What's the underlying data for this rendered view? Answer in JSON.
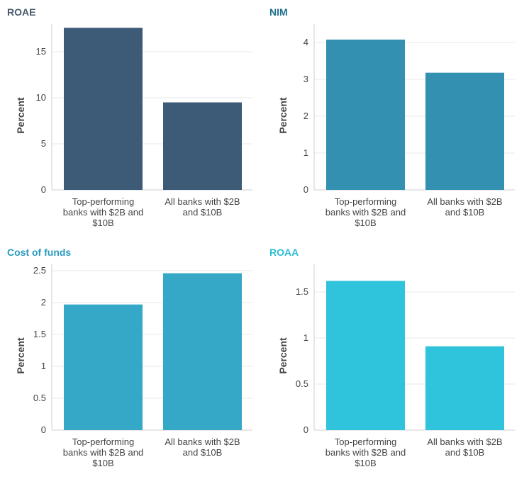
{
  "chart_data": [
    {
      "type": "bar",
      "title": "ROAE",
      "title_color": "#4a5a6a",
      "bar_color": "#3d5a77",
      "ylabel": "Percent",
      "categories": [
        "Top-performing banks with $2B and $10B",
        "All banks with $2B and $10B"
      ],
      "category_lines": [
        [
          "Top-performing",
          "banks with $2B and",
          "$10B"
        ],
        [
          "All banks with $2B",
          "and $10B"
        ]
      ],
      "values": [
        17.6,
        9.5
      ],
      "ylim": [
        0,
        18
      ],
      "yticks": [
        0,
        5,
        10,
        15
      ],
      "ytick_labels": [
        "0",
        "5",
        "10",
        "15"
      ],
      "grid": true
    },
    {
      "type": "bar",
      "title": "NIM",
      "title_color": "#1e6f8c",
      "bar_color": "#3390b0",
      "ylabel": "Percent",
      "categories": [
        "Top-performing banks with $2B and $10B",
        "All banks with $2B and $10B"
      ],
      "category_lines": [
        [
          "Top-performing",
          "banks with $2B and",
          "$10B"
        ],
        [
          "All banks with $2B",
          "and $10B"
        ]
      ],
      "values": [
        4.08,
        3.18
      ],
      "ylim": [
        0,
        4.5
      ],
      "yticks": [
        0,
        1,
        2,
        3,
        4
      ],
      "ytick_labels": [
        "0",
        "1",
        "2",
        "3",
        "4"
      ],
      "grid": true
    },
    {
      "type": "bar",
      "title": "Cost of funds",
      "title_color": "#2a9abf",
      "bar_color": "#35a8c8",
      "ylabel": "Percent",
      "categories": [
        "Top-performing banks with $2B and $10B",
        "All banks with $2B and $10B"
      ],
      "category_lines": [
        [
          "Top-performing",
          "banks with $2B and",
          "$10B"
        ],
        [
          "All banks with $2B",
          "and $10B"
        ]
      ],
      "values": [
        1.97,
        2.46
      ],
      "ylim": [
        0,
        2.6
      ],
      "yticks": [
        0,
        0.5,
        1,
        1.5,
        2,
        2.5
      ],
      "ytick_labels": [
        "0",
        "0.5",
        "1",
        "1.5",
        "2",
        "2.5"
      ],
      "grid": true
    },
    {
      "type": "bar",
      "title": "ROAA",
      "title_color": "#2bbcd6",
      "bar_color": "#30c4dc",
      "ylabel": "Percent",
      "categories": [
        "Top-performing banks with $2B and $10B",
        "All banks with $2B and $10B"
      ],
      "category_lines": [
        [
          "Top-performing",
          "banks with $2B and",
          "$10B"
        ],
        [
          "All banks with $2B",
          "and $10B"
        ]
      ],
      "values": [
        1.62,
        0.91
      ],
      "ylim": [
        0,
        1.8
      ],
      "yticks": [
        0,
        0.5,
        1,
        1.5
      ],
      "ytick_labels": [
        "0",
        "0.5",
        "1",
        "1.5"
      ],
      "grid": true
    }
  ]
}
